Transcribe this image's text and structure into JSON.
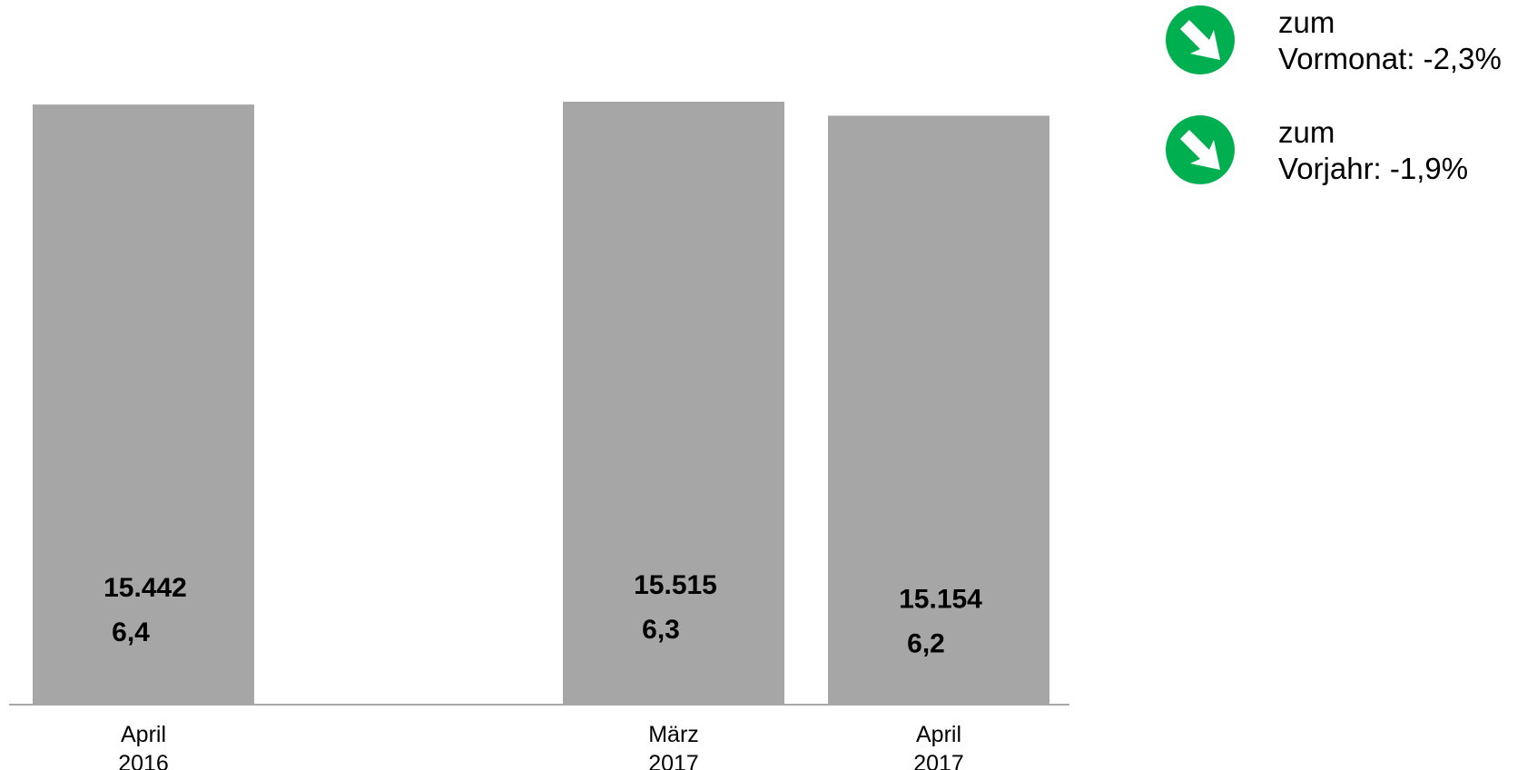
{
  "chart_data": {
    "type": "bar",
    "categories": [
      [
        "April",
        "2016"
      ],
      [
        "März",
        "2017"
      ],
      [
        "April",
        "2017"
      ]
    ],
    "slots": [
      0,
      2,
      3
    ],
    "series": [
      {
        "values": [
          15442,
          15515,
          15154
        ]
      },
      {
        "values": [
          6.4,
          6.3,
          6.2
        ]
      }
    ],
    "value_labels": [
      "15.442",
      "15.515",
      "15.154"
    ],
    "secondary_labels": [
      "6,4",
      "6,3",
      "6,2"
    ],
    "ylim": [
      0,
      15515
    ],
    "bar_color": "#a6a6a6",
    "grid": false,
    "legend": "none"
  },
  "indicators": [
    {
      "line1": "zum",
      "line2": "Vormonat: -2,3%",
      "icon": "down-right-arrow-icon",
      "color": "#00b050"
    },
    {
      "line1": "zum",
      "line2": "Vorjahr: -1,9%",
      "icon": "down-right-arrow-icon",
      "color": "#00b050"
    }
  ]
}
